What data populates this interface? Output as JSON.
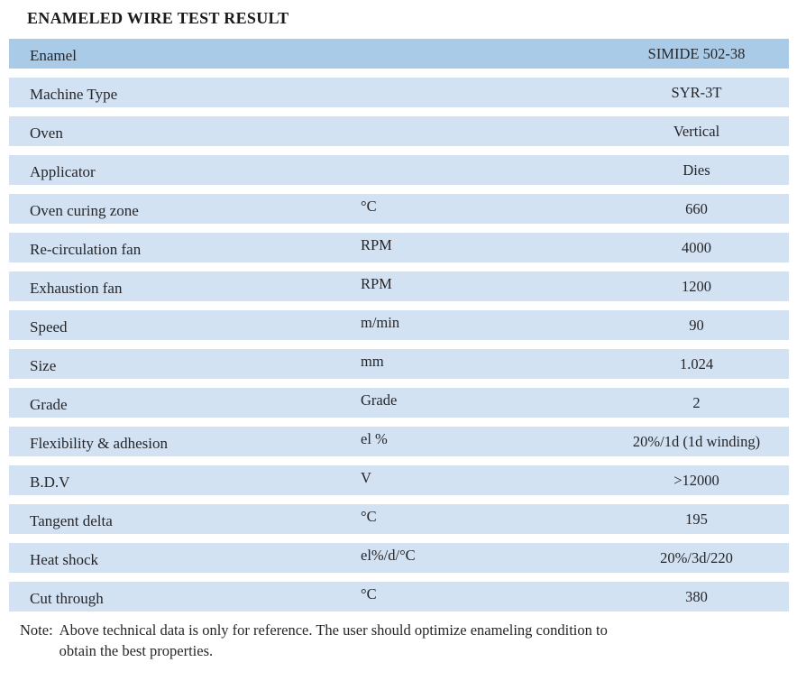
{
  "title": "ENAMELED WIRE TEST RESULT",
  "colors": {
    "page_bg": "#ffffff",
    "row_highlight": "#a9cbe8",
    "row_normal": "#d2e2f2",
    "text": "#26262a"
  },
  "table": {
    "rows": [
      {
        "label": "Enamel",
        "unit": "",
        "value": "SIMIDE 502-38",
        "highlight": true
      },
      {
        "label": "Machine Type",
        "unit": "",
        "value": "SYR-3T",
        "highlight": false
      },
      {
        "label": "Oven",
        "unit": "",
        "value": "Vertical",
        "highlight": false
      },
      {
        "label": "Applicator",
        "unit": "",
        "value": "Dies",
        "highlight": false
      },
      {
        "label": "Oven curing zone",
        "unit": "°C",
        "value": "660",
        "highlight": false
      },
      {
        "label": "Re-circulation fan",
        "unit": "RPM",
        "value": "4000",
        "highlight": false
      },
      {
        "label": "Exhaustion fan",
        "unit": "RPM",
        "value": "1200",
        "highlight": false
      },
      {
        "label": "Speed",
        "unit": "m/min",
        "value": "90",
        "highlight": false
      },
      {
        "label": "Size",
        "unit": "mm",
        "value": "1.024",
        "highlight": false
      },
      {
        "label": "Grade",
        "unit": "Grade",
        "value": "2",
        "highlight": false
      },
      {
        "label": "Flexibility & adhesion",
        "unit": "el %",
        "value": "20%/1d (1d winding)",
        "highlight": false
      },
      {
        "label": "B.D.V",
        "unit": "V",
        "value": ">12000",
        "highlight": false
      },
      {
        "label": "Tangent delta",
        "unit": "°C",
        "value": "195",
        "highlight": false
      },
      {
        "label": "Heat shock",
        "unit": "el%/d/°C",
        "value": "20%/3d/220",
        "highlight": false
      },
      {
        "label": "Cut through",
        "unit": "°C",
        "value": "380",
        "highlight": false
      }
    ]
  },
  "note": {
    "label": "Note:",
    "line1": "Above technical data is only for reference. The user should optimize enameling condition to",
    "line2": "obtain the best properties."
  }
}
